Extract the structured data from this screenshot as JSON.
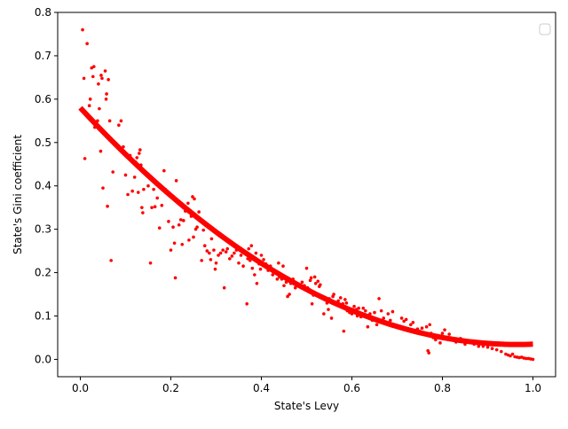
{
  "colors": {
    "series": "#ff0000",
    "axes": "#000000",
    "background": "#ffffff",
    "legend_border": "#cccccc"
  },
  "chart_data": {
    "type": "scatter",
    "title": "",
    "xlabel": "State's Levy",
    "ylabel": "State's Gini coefficient",
    "xlim": [
      -0.05,
      1.05
    ],
    "ylim": [
      -0.04,
      0.8
    ],
    "xticks": [
      0.0,
      0.2,
      0.4,
      0.6,
      0.8,
      1.0
    ],
    "xtick_labels": [
      "0.0",
      "0.2",
      "0.4",
      "0.6",
      "0.8",
      "1.0"
    ],
    "yticks": [
      0.0,
      0.1,
      0.2,
      0.3,
      0.4,
      0.5,
      0.6,
      0.7,
      0.8
    ],
    "ytick_labels": [
      "0.0",
      "0.1",
      "0.2",
      "0.3",
      "0.4",
      "0.5",
      "0.6",
      "0.7",
      "0.8"
    ],
    "grid": false,
    "legend": {
      "placement": "upper-right",
      "entries": []
    },
    "fit_curve": {
      "type": "quadratic",
      "coefficients": [
        0.58,
        -1.13,
        0.585
      ],
      "x_range": [
        0.0,
        1.0
      ]
    },
    "points": [
      [
        0.005,
        0.76
      ],
      [
        0.008,
        0.648
      ],
      [
        0.01,
        0.463
      ],
      [
        0.015,
        0.728
      ],
      [
        0.02,
        0.585
      ],
      [
        0.022,
        0.6
      ],
      [
        0.025,
        0.672
      ],
      [
        0.028,
        0.652
      ],
      [
        0.03,
        0.675
      ],
      [
        0.032,
        0.535
      ],
      [
        0.035,
        0.54
      ],
      [
        0.038,
        0.55
      ],
      [
        0.04,
        0.635
      ],
      [
        0.042,
        0.578
      ],
      [
        0.044,
        0.53
      ],
      [
        0.045,
        0.48
      ],
      [
        0.046,
        0.655
      ],
      [
        0.048,
        0.648
      ],
      [
        0.05,
        0.395
      ],
      [
        0.052,
        0.525
      ],
      [
        0.055,
        0.665
      ],
      [
        0.057,
        0.6
      ],
      [
        0.058,
        0.612
      ],
      [
        0.06,
        0.353
      ],
      [
        0.062,
        0.645
      ],
      [
        0.065,
        0.55
      ],
      [
        0.068,
        0.228
      ],
      [
        0.072,
        0.432
      ],
      [
        0.085,
        0.54
      ],
      [
        0.09,
        0.55
      ],
      [
        0.095,
        0.49
      ],
      [
        0.1,
        0.425
      ],
      [
        0.105,
        0.38
      ],
      [
        0.11,
        0.47
      ],
      [
        0.115,
        0.388
      ],
      [
        0.12,
        0.42
      ],
      [
        0.122,
        0.455
      ],
      [
        0.125,
        0.465
      ],
      [
        0.128,
        0.385
      ],
      [
        0.13,
        0.475
      ],
      [
        0.132,
        0.483
      ],
      [
        0.134,
        0.448
      ],
      [
        0.136,
        0.35
      ],
      [
        0.138,
        0.338
      ],
      [
        0.14,
        0.392
      ],
      [
        0.15,
        0.4
      ],
      [
        0.155,
        0.222
      ],
      [
        0.158,
        0.35
      ],
      [
        0.162,
        0.392
      ],
      [
        0.165,
        0.352
      ],
      [
        0.17,
        0.372
      ],
      [
        0.175,
        0.303
      ],
      [
        0.18,
        0.355
      ],
      [
        0.185,
        0.435
      ],
      [
        0.188,
        0.392
      ],
      [
        0.19,
        0.385
      ],
      [
        0.195,
        0.318
      ],
      [
        0.2,
        0.252
      ],
      [
        0.205,
        0.305
      ],
      [
        0.208,
        0.268
      ],
      [
        0.21,
        0.188
      ],
      [
        0.212,
        0.412
      ],
      [
        0.218,
        0.31
      ],
      [
        0.222,
        0.322
      ],
      [
        0.225,
        0.265
      ],
      [
        0.228,
        0.32
      ],
      [
        0.232,
        0.342
      ],
      [
        0.238,
        0.36
      ],
      [
        0.24,
        0.275
      ],
      [
        0.245,
        0.33
      ],
      [
        0.248,
        0.375
      ],
      [
        0.25,
        0.282
      ],
      [
        0.252,
        0.37
      ],
      [
        0.255,
        0.3
      ],
      [
        0.258,
        0.305
      ],
      [
        0.262,
        0.34
      ],
      [
        0.268,
        0.228
      ],
      [
        0.272,
        0.298
      ],
      [
        0.275,
        0.262
      ],
      [
        0.28,
        0.25
      ],
      [
        0.285,
        0.245
      ],
      [
        0.288,
        0.23
      ],
      [
        0.29,
        0.278
      ],
      [
        0.295,
        0.252
      ],
      [
        0.298,
        0.208
      ],
      [
        0.3,
        0.222
      ],
      [
        0.305,
        0.24
      ],
      [
        0.31,
        0.245
      ],
      [
        0.315,
        0.252
      ],
      [
        0.318,
        0.165
      ],
      [
        0.322,
        0.248
      ],
      [
        0.325,
        0.255
      ],
      [
        0.33,
        0.232
      ],
      [
        0.335,
        0.238
      ],
      [
        0.34,
        0.245
      ],
      [
        0.345,
        0.252
      ],
      [
        0.35,
        0.222
      ],
      [
        0.355,
        0.24
      ],
      [
        0.36,
        0.215
      ],
      [
        0.365,
        0.248
      ],
      [
        0.368,
        0.128
      ],
      [
        0.37,
        0.232
      ],
      [
        0.372,
        0.255
      ],
      [
        0.375,
        0.228
      ],
      [
        0.378,
        0.262
      ],
      [
        0.38,
        0.21
      ],
      [
        0.385,
        0.195
      ],
      [
        0.388,
        0.245
      ],
      [
        0.39,
        0.175
      ],
      [
        0.395,
        0.22
      ],
      [
        0.398,
        0.208
      ],
      [
        0.4,
        0.24
      ],
      [
        0.405,
        0.23
      ],
      [
        0.41,
        0.22
      ],
      [
        0.415,
        0.205
      ],
      [
        0.42,
        0.215
      ],
      [
        0.425,
        0.195
      ],
      [
        0.43,
        0.2
      ],
      [
        0.435,
        0.185
      ],
      [
        0.438,
        0.222
      ],
      [
        0.44,
        0.19
      ],
      [
        0.445,
        0.185
      ],
      [
        0.448,
        0.215
      ],
      [
        0.45,
        0.17
      ],
      [
        0.455,
        0.178
      ],
      [
        0.458,
        0.145
      ],
      [
        0.46,
        0.182
      ],
      [
        0.462,
        0.15
      ],
      [
        0.465,
        0.175
      ],
      [
        0.47,
        0.185
      ],
      [
        0.475,
        0.165
      ],
      [
        0.48,
        0.172
      ],
      [
        0.485,
        0.168
      ],
      [
        0.49,
        0.178
      ],
      [
        0.495,
        0.17
      ],
      [
        0.5,
        0.21
      ],
      [
        0.502,
        0.165
      ],
      [
        0.505,
        0.162
      ],
      [
        0.508,
        0.182
      ],
      [
        0.51,
        0.188
      ],
      [
        0.512,
        0.128
      ],
      [
        0.515,
        0.148
      ],
      [
        0.518,
        0.19
      ],
      [
        0.52,
        0.175
      ],
      [
        0.525,
        0.18
      ],
      [
        0.528,
        0.168
      ],
      [
        0.53,
        0.172
      ],
      [
        0.535,
        0.145
      ],
      [
        0.538,
        0.105
      ],
      [
        0.54,
        0.138
      ],
      [
        0.545,
        0.13
      ],
      [
        0.548,
        0.115
      ],
      [
        0.55,
        0.14
      ],
      [
        0.555,
        0.095
      ],
      [
        0.558,
        0.145
      ],
      [
        0.56,
        0.15
      ],
      [
        0.565,
        0.13
      ],
      [
        0.568,
        0.125
      ],
      [
        0.57,
        0.135
      ],
      [
        0.575,
        0.142
      ],
      [
        0.578,
        0.122
      ],
      [
        0.58,
        0.128
      ],
      [
        0.582,
        0.065
      ],
      [
        0.585,
        0.138
      ],
      [
        0.588,
        0.13
      ],
      [
        0.59,
        0.112
      ],
      [
        0.595,
        0.108
      ],
      [
        0.6,
        0.105
      ],
      [
        0.605,
        0.122
      ],
      [
        0.61,
        0.115
      ],
      [
        0.612,
        0.1
      ],
      [
        0.615,
        0.118
      ],
      [
        0.62,
        0.098
      ],
      [
        0.625,
        0.118
      ],
      [
        0.63,
        0.112
      ],
      [
        0.635,
        0.075
      ],
      [
        0.638,
        0.098
      ],
      [
        0.64,
        0.105
      ],
      [
        0.645,
        0.09
      ],
      [
        0.65,
        0.108
      ],
      [
        0.655,
        0.08
      ],
      [
        0.66,
        0.14
      ],
      [
        0.665,
        0.112
      ],
      [
        0.67,
        0.095
      ],
      [
        0.675,
        0.085
      ],
      [
        0.68,
        0.105
      ],
      [
        0.685,
        0.09
      ],
      [
        0.69,
        0.11
      ],
      [
        0.7,
        0.078
      ],
      [
        0.705,
        0.072
      ],
      [
        0.71,
        0.095
      ],
      [
        0.715,
        0.088
      ],
      [
        0.72,
        0.092
      ],
      [
        0.73,
        0.08
      ],
      [
        0.735,
        0.085
      ],
      [
        0.74,
        0.062
      ],
      [
        0.745,
        0.07
      ],
      [
        0.75,
        0.065
      ],
      [
        0.755,
        0.072
      ],
      [
        0.76,
        0.06
      ],
      [
        0.765,
        0.075
      ],
      [
        0.768,
        0.02
      ],
      [
        0.77,
        0.015
      ],
      [
        0.772,
        0.08
      ],
      [
        0.775,
        0.06
      ],
      [
        0.78,
        0.05
      ],
      [
        0.785,
        0.045
      ],
      [
        0.79,
        0.055
      ],
      [
        0.795,
        0.038
      ],
      [
        0.8,
        0.06
      ],
      [
        0.805,
        0.068
      ],
      [
        0.81,
        0.05
      ],
      [
        0.815,
        0.058
      ],
      [
        0.82,
        0.045
      ],
      [
        0.83,
        0.04
      ],
      [
        0.84,
        0.048
      ],
      [
        0.85,
        0.035
      ],
      [
        0.86,
        0.04
      ],
      [
        0.87,
        0.035
      ],
      [
        0.88,
        0.03
      ],
      [
        0.89,
        0.03
      ],
      [
        0.9,
        0.028
      ],
      [
        0.91,
        0.025
      ],
      [
        0.92,
        0.022
      ],
      [
        0.93,
        0.018
      ],
      [
        0.94,
        0.012
      ],
      [
        0.945,
        0.01
      ],
      [
        0.95,
        0.008
      ],
      [
        0.955,
        0.012
      ],
      [
        0.96,
        0.006
      ],
      [
        0.965,
        0.005
      ],
      [
        0.97,
        0.004
      ],
      [
        0.975,
        0.005
      ],
      [
        0.98,
        0.003
      ],
      [
        0.985,
        0.002
      ],
      [
        0.99,
        0.002
      ],
      [
        0.995,
        0.001
      ],
      [
        1.0,
        0.0
      ]
    ]
  }
}
